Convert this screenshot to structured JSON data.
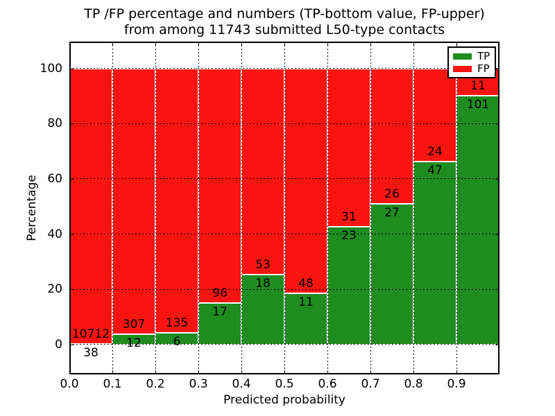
{
  "chart_data": {
    "type": "bar",
    "stacked": true,
    "title": "TP /FP percentage and numbers (TP-bottom value, FP-upper)\nfrom among 11743 submitted L50-type contacts",
    "xlabel": "Predicted probability",
    "ylabel": "Percentage",
    "total_contacts": 11743,
    "bins": [
      {
        "x_start": 0.0,
        "x_end": 0.1,
        "tp": 38,
        "fp": 10712,
        "tp_pct": 0.35
      },
      {
        "x_start": 0.1,
        "x_end": 0.2,
        "tp": 12,
        "fp": 307,
        "tp_pct": 3.76
      },
      {
        "x_start": 0.2,
        "x_end": 0.3,
        "tp": 6,
        "fp": 135,
        "tp_pct": 4.26
      },
      {
        "x_start": 0.3,
        "x_end": 0.4,
        "tp": 17,
        "fp": 96,
        "tp_pct": 15.04
      },
      {
        "x_start": 0.4,
        "x_end": 0.5,
        "tp": 18,
        "fp": 53,
        "tp_pct": 25.35
      },
      {
        "x_start": 0.5,
        "x_end": 0.6,
        "tp": 11,
        "fp": 48,
        "tp_pct": 18.64
      },
      {
        "x_start": 0.6,
        "x_end": 0.7,
        "tp": 23,
        "fp": 31,
        "tp_pct": 42.59
      },
      {
        "x_start": 0.7,
        "x_end": 0.8,
        "tp": 27,
        "fp": 26,
        "tp_pct": 50.94
      },
      {
        "x_start": 0.8,
        "x_end": 0.9,
        "tp": 47,
        "fp": 24,
        "tp_pct": 66.2
      },
      {
        "x_start": 0.9,
        "x_end": 1.0,
        "tp": 101,
        "fp": 11,
        "tp_pct": 90.18
      }
    ],
    "bar_total_pct": 100,
    "xticks": [
      "0.0",
      "0.1",
      "0.2",
      "0.3",
      "0.4",
      "0.5",
      "0.6",
      "0.7",
      "0.8",
      "0.9"
    ],
    "yticks": [
      0,
      20,
      40,
      60,
      80,
      100
    ],
    "xlim": [
      0.0,
      1.0
    ],
    "ylim": [
      -10.8,
      109.7
    ],
    "grid": true,
    "grid_style": "dotted",
    "legend": {
      "position": "upper right",
      "entries": [
        {
          "label": "TP",
          "color": "#1f8c1f"
        },
        {
          "label": "FP",
          "color": "#fa1410"
        }
      ]
    },
    "colors": {
      "tp": "#1f8c1f",
      "fp": "#fa1410",
      "bar_edge": "#ffffff",
      "grid": "#000000",
      "background": "#ffffff"
    }
  }
}
